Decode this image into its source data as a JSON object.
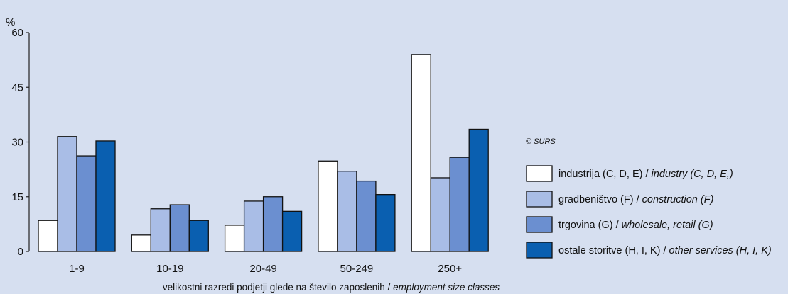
{
  "chart_data": {
    "type": "bar",
    "ylabel": "%",
    "ylim": [
      0,
      60
    ],
    "yticks": [
      0,
      15,
      30,
      45,
      60
    ],
    "categories": [
      "1-9",
      "10-19",
      "20-49",
      "50-249",
      "250+"
    ],
    "series": [
      {
        "name_plain": "industrija (C, D, E)",
        "name_italic": "industry (C, D, E,)",
        "color": "#ffffff",
        "values": [
          8.5,
          4.5,
          7.2,
          24.8,
          54.0
        ]
      },
      {
        "name_plain": "gradbeništvo (F)",
        "name_italic": "construction (F)",
        "color": "#a9bde6",
        "values": [
          31.5,
          11.7,
          13.8,
          22.0,
          20.2
        ]
      },
      {
        "name_plain": "trgovina (G)",
        "name_italic": "wholesale, retail (G)",
        "color": "#6b8fd0",
        "values": [
          26.2,
          12.8,
          15.0,
          19.3,
          25.8
        ]
      },
      {
        "name_plain": "ostale storitve (H, I, K)",
        "name_italic": "other services (H, I, K)",
        "color": "#0a5fb0",
        "values": [
          30.3,
          8.5,
          11.0,
          15.6,
          33.5
        ]
      }
    ],
    "xlabel_plain": "velikostni razredi podjetji glede na število zaposlenih",
    "xlabel_italic": "employment size classes",
    "copyright": "© SURS"
  }
}
